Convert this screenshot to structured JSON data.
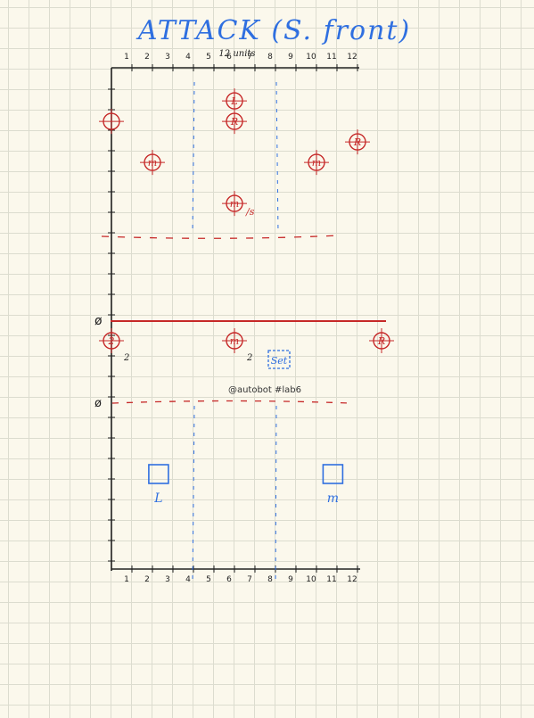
{
  "title": "ATTACK (S. front)",
  "units_label": "12 units",
  "handle": "@autobot #lab6",
  "axis_ticks": [
    "1",
    "2",
    "3",
    "4",
    "5",
    "6",
    "7",
    "8",
    "9",
    "10",
    "11",
    "12"
  ],
  "top_field_markers": [
    {
      "label": "L",
      "col": 6,
      "row": 1.7
    },
    {
      "label": "R",
      "col": 6,
      "row": 2.7
    },
    {
      "label": "",
      "col": 0,
      "row": 2.7
    },
    {
      "label": "R",
      "col": 12,
      "row": 3.7
    },
    {
      "label": "m",
      "col": 2,
      "row": 4.7
    },
    {
      "label": "m",
      "col": 10,
      "row": 4.7
    },
    {
      "label": "m",
      "col": 6,
      "row": 6.7,
      "note": "/s"
    }
  ],
  "line_markers": [
    {
      "label": "2",
      "col": 0,
      "sub": "2"
    },
    {
      "label": "m",
      "col": 6,
      "sub": "2"
    },
    {
      "label": "R",
      "col": 13,
      "sub": ""
    }
  ],
  "set_label": "Set",
  "bottom_squares": [
    {
      "label": "L",
      "col": 2.3
    },
    {
      "label": "m",
      "col": 10.8
    }
  ],
  "colors": {
    "red": "#c62828",
    "blue": "#2f6fe0",
    "ink": "#222222",
    "grid": "#dcdccf"
  }
}
